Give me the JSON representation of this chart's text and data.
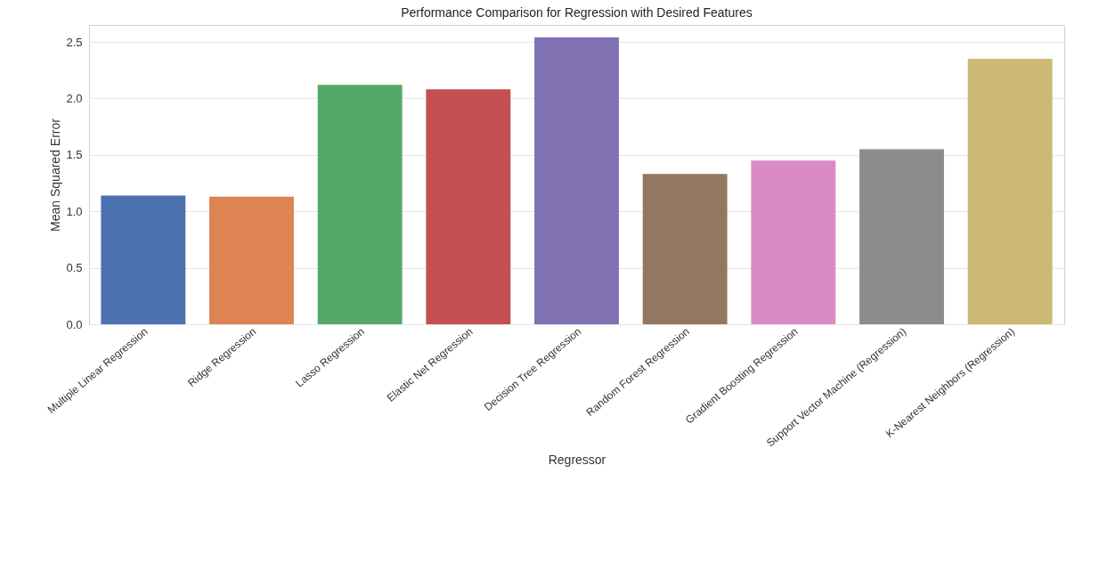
{
  "chart_data": {
    "type": "bar",
    "title": "Performance Comparison for Regression with Desired Features",
    "xlabel": "Regressor",
    "ylabel": "Mean Squared Error",
    "categories": [
      "Multiple Linear Regression",
      "Ridge Regression",
      "Lasso Regression",
      "Elastic Net Regression",
      "Decision Tree Regression",
      "Random Forest Regression",
      "Gradient Boosting Regression",
      "Support Vector Machine (Regression)",
      "K-Nearest Neighbors (Regression)"
    ],
    "values": [
      1.14,
      1.13,
      2.12,
      2.08,
      2.54,
      1.33,
      1.45,
      1.55,
      2.35
    ],
    "colors": [
      "#4c72b0",
      "#dd8452",
      "#55a868",
      "#c44e52",
      "#8172b3",
      "#937860",
      "#da8bc3",
      "#8c8c8c",
      "#ccb974"
    ],
    "ylim": [
      0,
      2.65
    ],
    "yticks": [
      {
        "value": 0,
        "label": "0.0"
      },
      0.5,
      {
        "value": 1,
        "label": "1.0"
      },
      1.5,
      {
        "value": 2,
        "label": "2.0"
      },
      2.5
    ],
    "grid": "y"
  }
}
